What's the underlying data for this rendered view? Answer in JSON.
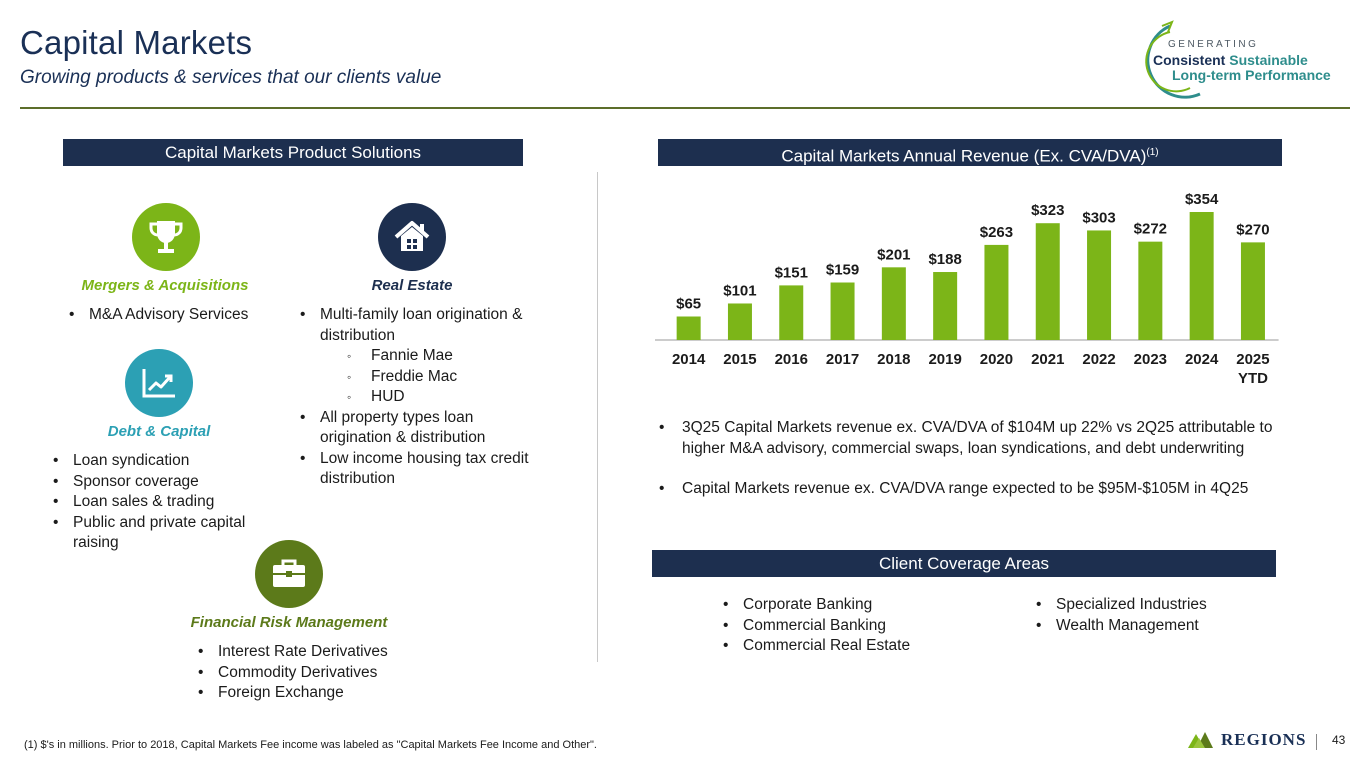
{
  "header": {
    "title": "Capital Markets",
    "subtitle": "Growing products & services that our clients value"
  },
  "brand": {
    "generating": "GENERATING",
    "consistent": "Consistent",
    "sustainable": "Sustainable",
    "long_term": "Long-term Performance",
    "company": "Regions",
    "accent_green": "#7cb518",
    "navy": "#1d2f4f",
    "teal": "#2ca0b4",
    "olive": "#5c7a1a"
  },
  "products": {
    "header": "Capital Markets Product Solutions",
    "ma": {
      "icon": "trophy-icon",
      "label": "Mergers & Acquisitions",
      "items": [
        "M&A Advisory Services"
      ]
    },
    "real_estate": {
      "icon": "house-icon",
      "label": "Real Estate",
      "items": [
        "Multi-family loan origination & distribution",
        "All property types loan origination & distribution",
        "Low income housing tax credit distribution"
      ],
      "sub_items": [
        "Fannie Mae",
        "Freddie Mac",
        "HUD"
      ]
    },
    "debt_capital": {
      "icon": "trend-chart-icon",
      "label": "Debt & Capital",
      "items": [
        "Loan syndication",
        "Sponsor coverage",
        "Loan sales & trading",
        "Public and private capital raising"
      ]
    },
    "risk": {
      "icon": "briefcase-icon",
      "label": "Financial Risk Management",
      "items": [
        "Interest Rate Derivatives",
        "Commodity Derivatives",
        "Foreign Exchange"
      ]
    }
  },
  "revenue": {
    "header": "Capital Markets Annual Revenue (Ex. CVA/DVA)",
    "header_sup": "(1)",
    "notes": [
      "3Q25 Capital Markets revenue ex. CVA/DVA of $104M up 22% vs 2Q25 attributable to higher M&A advisory, commercial swaps, loan syndications, and debt underwriting",
      "Capital Markets revenue ex. CVA/DVA range expected to be $95M-$105M in 4Q25"
    ]
  },
  "chart_data": {
    "type": "bar",
    "title": "Capital Markets Annual Revenue (Ex. CVA/DVA)",
    "categories": [
      "2014",
      "2015",
      "2016",
      "2017",
      "2018",
      "2019",
      "2020",
      "2021",
      "2022",
      "2023",
      "2024",
      "2025 YTD"
    ],
    "category_lines": [
      [
        "2014"
      ],
      [
        "2015"
      ],
      [
        "2016"
      ],
      [
        "2017"
      ],
      [
        "2018"
      ],
      [
        "2019"
      ],
      [
        "2020"
      ],
      [
        "2021"
      ],
      [
        "2022"
      ],
      [
        "2023"
      ],
      [
        "2024"
      ],
      [
        "2025",
        "YTD"
      ]
    ],
    "values": [
      65,
      101,
      151,
      159,
      201,
      188,
      263,
      323,
      303,
      272,
      354,
      270
    ],
    "value_labels": [
      "$65",
      "$101",
      "$151",
      "$159",
      "$201",
      "$188",
      "$263",
      "$323",
      "$303",
      "$272",
      "$354",
      "$270"
    ],
    "units": "$ millions",
    "ylim": [
      0,
      354
    ],
    "xlabel": "",
    "ylabel": "",
    "grid": false,
    "bar_color": "#7cb518"
  },
  "coverage": {
    "header": "Client Coverage Areas",
    "left": [
      "Corporate Banking",
      "Commercial Banking",
      "Commercial Real Estate"
    ],
    "right": [
      "Specialized Industries",
      "Wealth Management"
    ]
  },
  "footer": {
    "footnote": "(1) $'s in millions.  Prior to 2018, Capital Markets Fee income was labeled as \"Capital Markets Fee Income and Other\".",
    "page_number": "43"
  }
}
